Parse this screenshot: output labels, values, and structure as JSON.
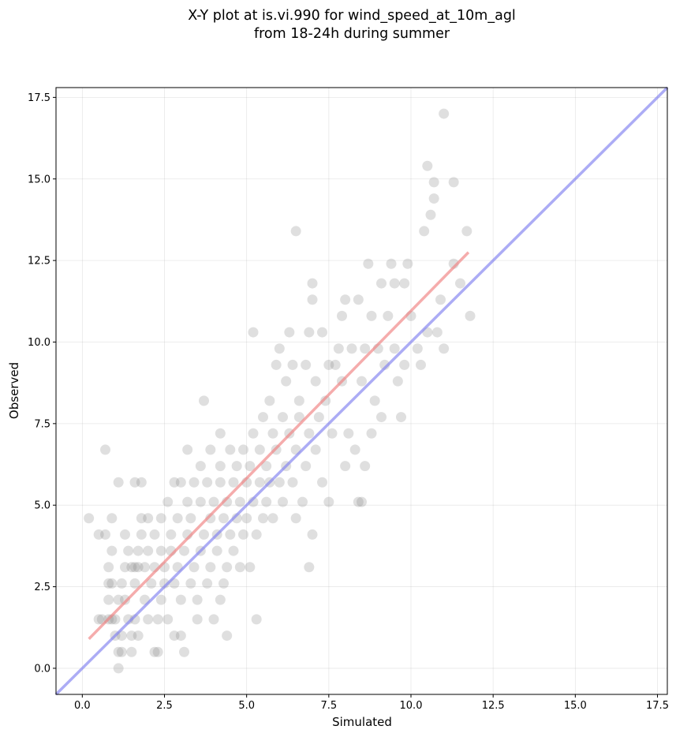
{
  "chart_data": {
    "type": "scatter",
    "title": [
      "X-Y plot at is.vi.990 for wind_speed_at_10m_agl",
      "from 18-24h during summer"
    ],
    "xlabel": "Simulated",
    "ylabel": "Observed",
    "xlim": [
      -0.8,
      17.8
    ],
    "ylim": [
      -0.8,
      17.8
    ],
    "xticks": [
      0.0,
      2.5,
      5.0,
      7.5,
      10.0,
      12.5,
      15.0,
      17.5
    ],
    "yticks": [
      0.0,
      2.5,
      5.0,
      7.5,
      10.0,
      12.5,
      15.0,
      17.5
    ],
    "xtick_labels": [
      "0.0",
      "2.5",
      "5.0",
      "7.5",
      "10.0",
      "12.5",
      "15.0",
      "17.5"
    ],
    "ytick_labels": [
      "0.0",
      "2.5",
      "5.0",
      "7.5",
      "10.0",
      "12.5",
      "15.0",
      "17.5"
    ],
    "grid": true,
    "point_color": "#808080",
    "lines": [
      {
        "role": "one-to-one",
        "color": "#7f7fef",
        "x": [
          -0.8,
          17.8
        ],
        "y": [
          -0.8,
          17.8
        ]
      },
      {
        "role": "regression",
        "color": "#f08080",
        "x": [
          0.2,
          11.75
        ],
        "y": [
          0.9,
          12.75
        ]
      }
    ],
    "points": [
      [
        0.2,
        4.6
      ],
      [
        0.5,
        4.1
      ],
      [
        0.7,
        4.1
      ],
      [
        0.7,
        6.7
      ],
      [
        0.5,
        1.5
      ],
      [
        0.6,
        1.5
      ],
      [
        0.8,
        1.5
      ],
      [
        0.9,
        1.5
      ],
      [
        0.8,
        2.1
      ],
      [
        0.8,
        2.6
      ],
      [
        0.8,
        3.1
      ],
      [
        0.9,
        3.6
      ],
      [
        0.9,
        4.6
      ],
      [
        0.9,
        2.6
      ],
      [
        1.0,
        1.0
      ],
      [
        1.0,
        1.5
      ],
      [
        1.1,
        0.5
      ],
      [
        1.2,
        0.5
      ],
      [
        1.1,
        0.0
      ],
      [
        1.1,
        5.7
      ],
      [
        1.1,
        2.1
      ],
      [
        1.2,
        1.0
      ],
      [
        1.2,
        2.6
      ],
      [
        1.3,
        2.1
      ],
      [
        1.3,
        3.1
      ],
      [
        1.3,
        4.1
      ],
      [
        1.4,
        1.5
      ],
      [
        1.4,
        3.6
      ],
      [
        1.5,
        0.5
      ],
      [
        1.5,
        1.0
      ],
      [
        1.6,
        1.5
      ],
      [
        1.6,
        2.6
      ],
      [
        1.5,
        3.1
      ],
      [
        1.6,
        3.1
      ],
      [
        1.7,
        3.1
      ],
      [
        1.7,
        3.6
      ],
      [
        1.7,
        1.0
      ],
      [
        1.6,
        5.7
      ],
      [
        1.8,
        5.7
      ],
      [
        1.8,
        4.1
      ],
      [
        1.8,
        4.6
      ],
      [
        1.9,
        3.1
      ],
      [
        1.9,
        2.1
      ],
      [
        2.0,
        1.5
      ],
      [
        2.0,
        3.6
      ],
      [
        2.0,
        4.6
      ],
      [
        2.1,
        2.6
      ],
      [
        2.2,
        3.1
      ],
      [
        2.2,
        4.1
      ],
      [
        2.2,
        0.5
      ],
      [
        2.3,
        0.5
      ],
      [
        2.3,
        1.5
      ],
      [
        2.4,
        2.1
      ],
      [
        2.4,
        3.6
      ],
      [
        2.4,
        4.6
      ],
      [
        2.5,
        3.1
      ],
      [
        2.5,
        2.6
      ],
      [
        2.6,
        1.5
      ],
      [
        2.6,
        5.1
      ],
      [
        2.7,
        4.1
      ],
      [
        2.7,
        3.6
      ],
      [
        2.8,
        2.6
      ],
      [
        2.8,
        1.0
      ],
      [
        2.8,
        5.7
      ],
      [
        2.9,
        3.1
      ],
      [
        2.9,
        4.6
      ],
      [
        3.0,
        1.0
      ],
      [
        3.0,
        2.1
      ],
      [
        3.0,
        5.7
      ],
      [
        3.1,
        3.6
      ],
      [
        3.1,
        0.5
      ],
      [
        3.2,
        4.1
      ],
      [
        3.2,
        5.1
      ],
      [
        3.2,
        6.7
      ],
      [
        3.3,
        2.6
      ],
      [
        3.3,
        4.6
      ],
      [
        3.4,
        3.1
      ],
      [
        3.4,
        5.7
      ],
      [
        3.5,
        2.1
      ],
      [
        3.5,
        1.5
      ],
      [
        3.6,
        3.6
      ],
      [
        3.6,
        5.1
      ],
      [
        3.6,
        6.2
      ],
      [
        3.7,
        4.1
      ],
      [
        3.7,
        8.2
      ],
      [
        3.8,
        2.6
      ],
      [
        3.8,
        5.7
      ],
      [
        3.9,
        4.6
      ],
      [
        3.9,
        3.1
      ],
      [
        3.9,
        6.7
      ],
      [
        4.0,
        5.1
      ],
      [
        4.0,
        1.5
      ],
      [
        4.1,
        3.6
      ],
      [
        4.1,
        4.1
      ],
      [
        4.2,
        2.1
      ],
      [
        4.2,
        5.7
      ],
      [
        4.2,
        6.2
      ],
      [
        4.2,
        7.2
      ],
      [
        4.3,
        4.6
      ],
      [
        4.3,
        2.6
      ],
      [
        4.4,
        3.1
      ],
      [
        4.4,
        5.1
      ],
      [
        4.4,
        1.0
      ],
      [
        4.5,
        4.1
      ],
      [
        4.5,
        6.7
      ],
      [
        4.6,
        5.7
      ],
      [
        4.6,
        3.6
      ],
      [
        4.7,
        4.6
      ],
      [
        4.7,
        6.2
      ],
      [
        4.8,
        5.1
      ],
      [
        4.8,
        3.1
      ],
      [
        4.9,
        4.1
      ],
      [
        4.9,
        6.7
      ],
      [
        5.0,
        5.7
      ],
      [
        5.0,
        4.6
      ],
      [
        5.1,
        6.2
      ],
      [
        5.1,
        3.1
      ],
      [
        5.2,
        7.2
      ],
      [
        5.2,
        5.1
      ],
      [
        5.2,
        10.3
      ],
      [
        5.3,
        4.1
      ],
      [
        5.3,
        1.5
      ],
      [
        5.4,
        5.7
      ],
      [
        5.4,
        6.7
      ],
      [
        5.5,
        4.6
      ],
      [
        5.5,
        7.7
      ],
      [
        5.6,
        6.2
      ],
      [
        5.6,
        5.1
      ],
      [
        5.7,
        8.2
      ],
      [
        5.7,
        5.7
      ],
      [
        5.8,
        7.2
      ],
      [
        5.8,
        4.6
      ],
      [
        5.9,
        6.7
      ],
      [
        5.9,
        9.3
      ],
      [
        6.0,
        5.7
      ],
      [
        6.0,
        9.8
      ],
      [
        6.1,
        7.7
      ],
      [
        6.1,
        5.1
      ],
      [
        6.2,
        6.2
      ],
      [
        6.2,
        8.8
      ],
      [
        6.3,
        10.3
      ],
      [
        6.3,
        7.2
      ],
      [
        6.4,
        9.3
      ],
      [
        6.4,
        5.7
      ],
      [
        6.5,
        6.7
      ],
      [
        6.5,
        4.6
      ],
      [
        6.5,
        13.4
      ],
      [
        6.6,
        8.2
      ],
      [
        6.6,
        7.7
      ],
      [
        6.7,
        5.1
      ],
      [
        6.8,
        9.3
      ],
      [
        6.8,
        6.2
      ],
      [
        6.9,
        10.3
      ],
      [
        6.9,
        7.2
      ],
      [
        7.0,
        11.3
      ],
      [
        7.0,
        11.8
      ],
      [
        7.0,
        4.1
      ],
      [
        7.1,
        8.8
      ],
      [
        7.1,
        6.7
      ],
      [
        7.2,
        7.7
      ],
      [
        7.3,
        5.7
      ],
      [
        7.3,
        10.3
      ],
      [
        7.4,
        8.2
      ],
      [
        7.5,
        9.3
      ],
      [
        7.5,
        5.1
      ],
      [
        7.6,
        7.2
      ],
      [
        7.7,
        9.3
      ],
      [
        7.8,
        9.8
      ],
      [
        7.9,
        10.8
      ],
      [
        7.9,
        8.8
      ],
      [
        8.0,
        6.2
      ],
      [
        8.0,
        11.3
      ],
      [
        8.1,
        7.2
      ],
      [
        8.2,
        9.8
      ],
      [
        8.3,
        6.7
      ],
      [
        8.4,
        11.3
      ],
      [
        8.4,
        5.1
      ],
      [
        8.5,
        8.8
      ],
      [
        8.6,
        9.8
      ],
      [
        8.6,
        6.2
      ],
      [
        8.7,
        12.4
      ],
      [
        8.8,
        10.8
      ],
      [
        8.8,
        7.2
      ],
      [
        8.9,
        8.2
      ],
      [
        9.0,
        9.8
      ],
      [
        9.1,
        11.8
      ],
      [
        9.1,
        7.7
      ],
      [
        9.2,
        9.3
      ],
      [
        9.3,
        10.8
      ],
      [
        9.4,
        12.4
      ],
      [
        9.5,
        9.8
      ],
      [
        9.5,
        11.8
      ],
      [
        9.6,
        8.8
      ],
      [
        9.7,
        7.7
      ],
      [
        9.8,
        11.8
      ],
      [
        9.8,
        9.3
      ],
      [
        9.9,
        12.4
      ],
      [
        10.0,
        10.8
      ],
      [
        10.2,
        9.8
      ],
      [
        10.3,
        9.3
      ],
      [
        10.4,
        13.4
      ],
      [
        10.5,
        10.3
      ],
      [
        10.5,
        15.4
      ],
      [
        10.6,
        13.9
      ],
      [
        10.7,
        14.4
      ],
      [
        10.7,
        14.9
      ],
      [
        10.8,
        10.3
      ],
      [
        10.9,
        11.3
      ],
      [
        11.0,
        9.8
      ],
      [
        11.0,
        17.0
      ],
      [
        11.3,
        14.9
      ],
      [
        11.3,
        12.4
      ],
      [
        11.5,
        11.8
      ],
      [
        11.7,
        13.4
      ],
      [
        11.8,
        10.8
      ],
      [
        6.9,
        3.1
      ],
      [
        8.5,
        5.1
      ]
    ]
  }
}
